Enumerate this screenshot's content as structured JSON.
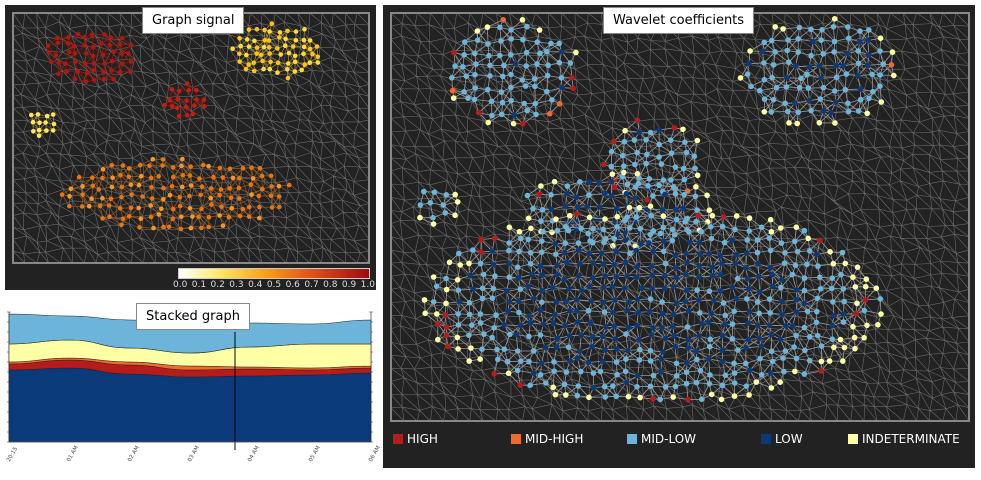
{
  "signal_panel": {
    "title": "Graph signal",
    "colorbar_ticks": [
      "0.0",
      "0.1",
      "0.2",
      "0.3",
      "0.4",
      "0.5",
      "0.6",
      "0.7",
      "0.8",
      "0.9",
      "1.0"
    ],
    "colorbar_range": [
      0.0,
      1.0
    ]
  },
  "wavelet_panel": {
    "title": "Wavelet coefficients",
    "legend": [
      {
        "label": "HIGH",
        "color": "#b71c1c"
      },
      {
        "label": "MID-HIGH",
        "color": "#f26a2b"
      },
      {
        "label": "MID-LOW",
        "color": "#6cb4d9"
      },
      {
        "label": "LOW",
        "color": "#0b3a7a"
      },
      {
        "label": "INDETERMINATE",
        "color": "#ffffa6"
      }
    ]
  },
  "stacked_panel": {
    "title": "Stacked graph",
    "x_ticks": [
      "20:15",
      "01 AM",
      "02 AM",
      "03 AM",
      "04 AM",
      "05 AM",
      "06 AM"
    ]
  },
  "chart_data": {
    "type": "area",
    "title": "Stacked graph",
    "xlabel": "",
    "ylabel": "",
    "categories": [
      "20:15",
      "01 AM",
      "02 AM",
      "03 AM",
      "04 AM",
      "05 AM",
      "06 AM"
    ],
    "series": [
      {
        "values": [
          7.2,
          7.4,
          6.8,
          6.5,
          6.6,
          6.7,
          6.9
        ],
        "color": "#0b3a7a"
      },
      {
        "values": [
          0.6,
          0.8,
          0.9,
          0.7,
          0.7,
          0.5,
          0.5
        ],
        "color": "#b71c1c"
      },
      {
        "values": [
          0.2,
          0.2,
          0.3,
          0.4,
          0.2,
          0.2,
          0.2
        ],
        "color": "#f26a2b"
      },
      {
        "values": [
          1.8,
          1.8,
          1.4,
          1.3,
          2.0,
          2.4,
          2.2
        ],
        "color": "#ffffa6"
      },
      {
        "values": [
          3.0,
          2.4,
          2.8,
          2.9,
          2.4,
          2.0,
          2.4
        ],
        "color": "#6cb4d9"
      }
    ],
    "ylim": [
      0,
      13
    ]
  }
}
